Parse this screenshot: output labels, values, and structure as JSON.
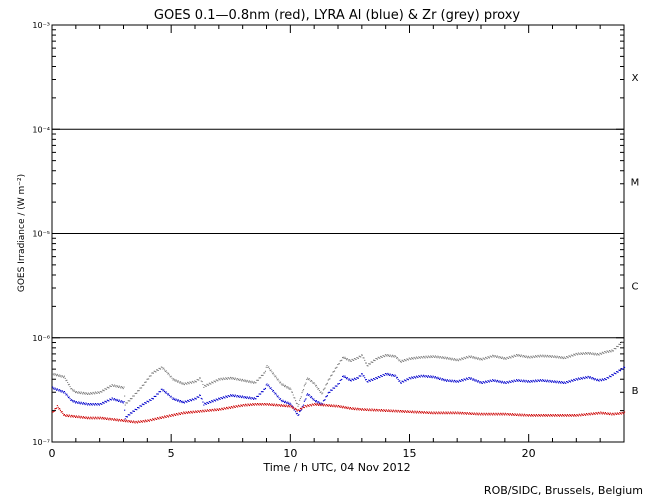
{
  "chart_data": {
    "type": "line",
    "title": "GOES 0.1—0.8nm (red), LYRA Al (blue) & Zr (grey) proxy",
    "xlabel": "Time / h UTC, 04 Nov 2012",
    "ylabel": "GOES Irradiance / (W m⁻²)",
    "credit": "ROB/SIDC, Brussels, Belgium",
    "xlim": [
      0,
      24
    ],
    "ylim": [
      1e-07,
      0.001
    ],
    "yscale": "log",
    "x_ticks": [
      {
        "value": 0,
        "label": "0"
      },
      {
        "value": 5,
        "label": "5"
      },
      {
        "value": 10,
        "label": "10"
      },
      {
        "value": 15,
        "label": "15"
      },
      {
        "value": 20,
        "label": "20"
      }
    ],
    "y_ticks": [
      {
        "value": 1e-07,
        "label": "10⁻⁷"
      },
      {
        "value": 1e-06,
        "label": "10⁻⁶"
      },
      {
        "value": 1e-05,
        "label": "10⁻⁵"
      },
      {
        "value": 0.0001,
        "label": "10⁻⁴"
      },
      {
        "value": 0.001,
        "label": "10⁻³"
      }
    ],
    "flare_class_lines": [
      1e-06,
      1e-05,
      0.0001
    ],
    "flare_classes": [
      {
        "label": "X",
        "value": 0.000316
      },
      {
        "label": "M",
        "value": 3.16e-05
      },
      {
        "label": "C",
        "value": 3.16e-06
      },
      {
        "label": "B",
        "value": 3.16e-07
      }
    ],
    "series": [
      {
        "name": "Zr proxy",
        "color": "#808080",
        "x": [
          0,
          0.5,
          0.8,
          1.0,
          1.5,
          2.0,
          2.5,
          3.0,
          3.05,
          3.3,
          3.8,
          4.2,
          4.6,
          4.9,
          5.05,
          5.5,
          6.0,
          6.2,
          6.35,
          7.0,
          7.5,
          8.0,
          8.5,
          8.9,
          9.0,
          9.3,
          9.6,
          10.0,
          10.3,
          10.5,
          10.7,
          11.0,
          11.3,
          11.6,
          12.0,
          12.2,
          12.5,
          12.8,
          13.0,
          13.2,
          13.6,
          14.0,
          14.4,
          14.6,
          15.0,
          15.5,
          16.0,
          16.5,
          17.0,
          17.5,
          18.0,
          18.5,
          19.0,
          19.5,
          20.0,
          20.5,
          21.0,
          21.5,
          22.0,
          22.5,
          22.9,
          23.2,
          23.5,
          24.0
        ],
        "values": [
          4.5e-07,
          4.2e-07,
          3.2e-07,
          3e-07,
          2.9e-07,
          3e-07,
          3.5e-07,
          3.3e-07,
          2.3e-07,
          2.6e-07,
          3.5e-07,
          4.6e-07,
          5.2e-07,
          4.4e-07,
          4e-07,
          3.6e-07,
          3.8e-07,
          4.1e-07,
          3.4e-07,
          4e-07,
          4.1e-07,
          3.9e-07,
          3.7e-07,
          4.6e-07,
          5.4e-07,
          4.4e-07,
          3.6e-07,
          3.2e-07,
          2.2e-07,
          3.1e-07,
          4.1e-07,
          3.6e-07,
          2.9e-07,
          4e-07,
          5.6e-07,
          6.5e-07,
          6e-07,
          6.4e-07,
          6.8e-07,
          5.4e-07,
          6.3e-07,
          6.8e-07,
          6.6e-07,
          5.9e-07,
          6.3e-07,
          6.5e-07,
          6.6e-07,
          6.4e-07,
          6.1e-07,
          6.6e-07,
          6.2e-07,
          6.7e-07,
          6.3e-07,
          6.8e-07,
          6.5e-07,
          6.7e-07,
          6.6e-07,
          6.4e-07,
          7e-07,
          7.1e-07,
          6.9e-07,
          7.3e-07,
          7.5e-07,
          9.5e-07
        ]
      },
      {
        "name": "LYRA Al proxy",
        "color": "#0000cc",
        "x": [
          0,
          0.5,
          0.8,
          1.0,
          1.5,
          2.0,
          2.5,
          3.0,
          3.05,
          3.3,
          3.8,
          4.2,
          4.6,
          4.9,
          5.05,
          5.5,
          6.0,
          6.2,
          6.35,
          7.0,
          7.5,
          8.0,
          8.5,
          8.9,
          9.0,
          9.3,
          9.6,
          10.0,
          10.3,
          10.5,
          10.7,
          11.0,
          11.3,
          11.6,
          12.0,
          12.2,
          12.5,
          12.8,
          13.0,
          13.2,
          13.6,
          14.0,
          14.4,
          14.6,
          15.0,
          15.5,
          16.0,
          16.5,
          17.0,
          17.5,
          18.0,
          18.5,
          19.0,
          19.5,
          20.0,
          20.5,
          21.0,
          21.5,
          22.0,
          22.5,
          22.9,
          23.2,
          23.5,
          24.0
        ],
        "values": [
          3.3e-07,
          3e-07,
          2.5e-07,
          2.4e-07,
          2.3e-07,
          2.3e-07,
          2.6e-07,
          2.4e-07,
          1.7e-07,
          1.9e-07,
          2.3e-07,
          2.6e-07,
          3.2e-07,
          2.8e-07,
          2.6e-07,
          2.4e-07,
          2.6e-07,
          2.8e-07,
          2.3e-07,
          2.6e-07,
          2.8e-07,
          2.7e-07,
          2.6e-07,
          3.2e-07,
          3.6e-07,
          3e-07,
          2.5e-07,
          2.3e-07,
          1.8e-07,
          2.2e-07,
          2.9e-07,
          2.5e-07,
          2.3e-07,
          3e-07,
          3.6e-07,
          4.3e-07,
          3.9e-07,
          4.1e-07,
          4.5e-07,
          3.8e-07,
          4.1e-07,
          4.5e-07,
          4.3e-07,
          3.7e-07,
          4.1e-07,
          4.3e-07,
          4.2e-07,
          3.9e-07,
          3.8e-07,
          4.1e-07,
          3.7e-07,
          3.9e-07,
          3.7e-07,
          3.9e-07,
          3.8e-07,
          3.9e-07,
          3.8e-07,
          3.7e-07,
          4e-07,
          4.2e-07,
          3.9e-07,
          4e-07,
          4.4e-07,
          5.2e-07
        ]
      },
      {
        "name": "GOES 0.1-0.8nm",
        "color": "#cc0000",
        "x": [
          0,
          0.2,
          0.5,
          1.0,
          1.5,
          2.0,
          2.5,
          3.0,
          3.5,
          4.0,
          4.5,
          5.0,
          5.5,
          6.0,
          6.5,
          7.0,
          7.5,
          8.0,
          8.5,
          9.0,
          9.5,
          10.0,
          10.3,
          10.6,
          11.0,
          11.5,
          12.0,
          12.5,
          13.0,
          14.0,
          15.0,
          16.0,
          17.0,
          18.0,
          19.0,
          20.0,
          21.0,
          22.0,
          23.0,
          23.5,
          24.0
        ],
        "values": [
          1.9e-07,
          2.2e-07,
          1.8e-07,
          1.75e-07,
          1.7e-07,
          1.7e-07,
          1.65e-07,
          1.6e-07,
          1.55e-07,
          1.6e-07,
          1.7e-07,
          1.8e-07,
          1.9e-07,
          1.95e-07,
          2e-07,
          2.05e-07,
          2.15e-07,
          2.25e-07,
          2.3e-07,
          2.3e-07,
          2.25e-07,
          2.2e-07,
          2e-07,
          2.2e-07,
          2.3e-07,
          2.25e-07,
          2.2e-07,
          2.1e-07,
          2.05e-07,
          2e-07,
          1.95e-07,
          1.9e-07,
          1.9e-07,
          1.85e-07,
          1.85e-07,
          1.8e-07,
          1.8e-07,
          1.8e-07,
          1.9e-07,
          1.85e-07,
          1.9e-07
        ]
      }
    ]
  }
}
